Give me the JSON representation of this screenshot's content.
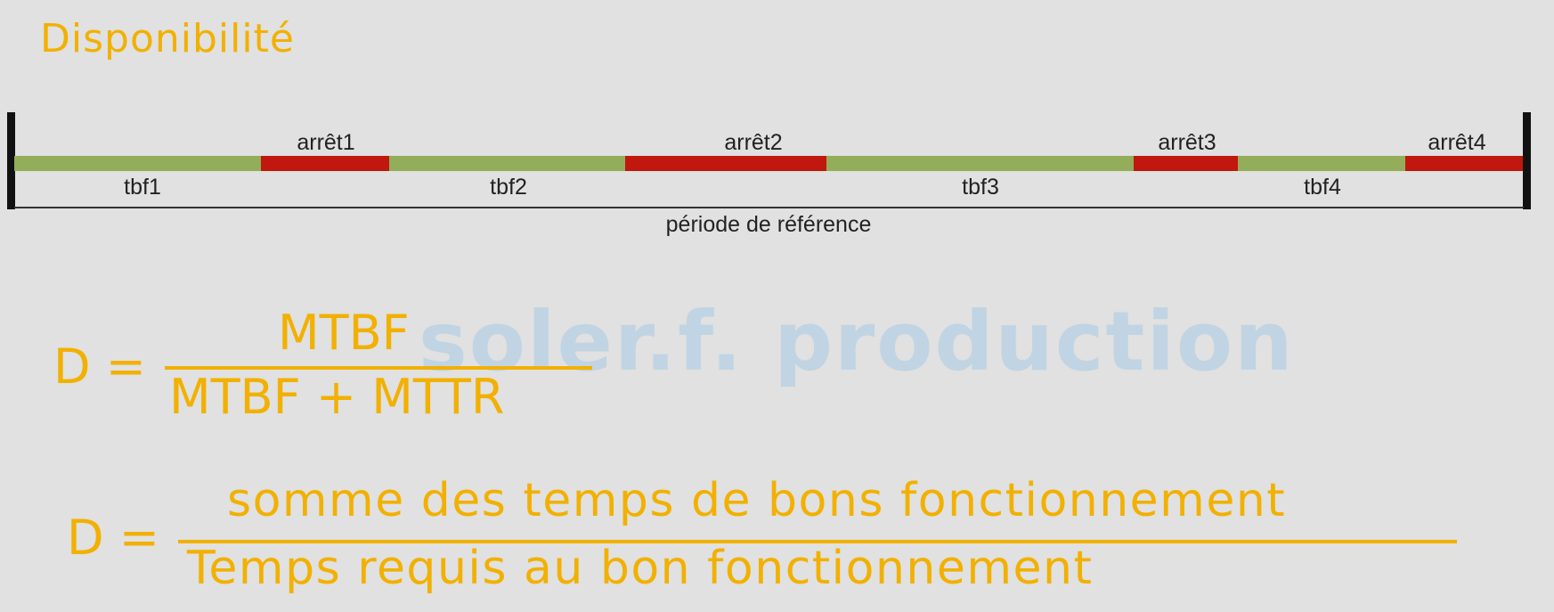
{
  "title": "Disponibilité",
  "colors": {
    "accent": "#f2b000",
    "running": "#93ad5a",
    "stop": "#c0180e",
    "watermark": "#b9d1e4"
  },
  "timeline": {
    "segments": [
      {
        "type": "running",
        "label": "tbf1"
      },
      {
        "type": "stop",
        "label": "arrêt1"
      },
      {
        "type": "running",
        "label": "tbf2"
      },
      {
        "type": "stop",
        "label": "arrêt2"
      },
      {
        "type": "running",
        "label": "tbf3"
      },
      {
        "type": "stop",
        "label": "arrêt3"
      },
      {
        "type": "running",
        "label": "tbf4"
      },
      {
        "type": "stop",
        "label": "arrêt4"
      }
    ],
    "period_label": "période de référence"
  },
  "watermark": "soler.f. production",
  "formula1": {
    "lhs": "D =",
    "numerator": "MTBF",
    "denominator": "MTBF + MTTR"
  },
  "formula2": {
    "lhs": "D =",
    "numerator": "somme des temps de bons fonctionnement",
    "denominator": "Temps requis au bon fonctionnement"
  }
}
